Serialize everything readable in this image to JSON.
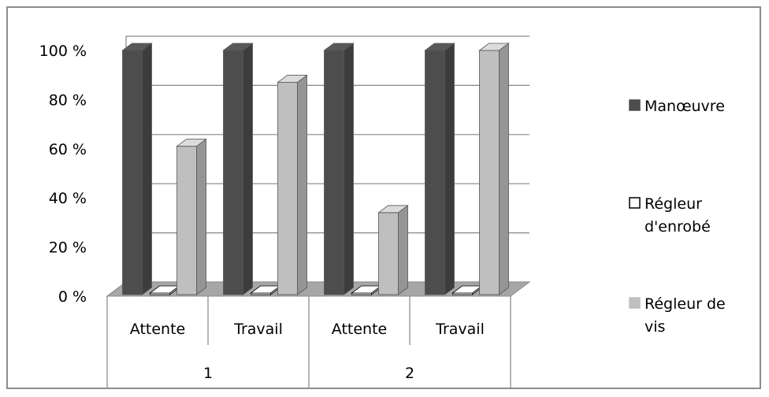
{
  "chart_data": {
    "type": "bar",
    "groups": [
      "1",
      "2"
    ],
    "categories": [
      "Attente",
      "Travail",
      "Attente",
      "Travail"
    ],
    "category_groups": [
      "1",
      "1",
      "2",
      "2"
    ],
    "series": [
      {
        "name": "Manœuvre",
        "values": [
          100,
          100,
          100,
          100
        ]
      },
      {
        "name": "Régleur d'enrobé",
        "values": [
          0,
          0,
          0,
          0
        ]
      },
      {
        "name": "Régleur de vis",
        "values": [
          61,
          87,
          34,
          100
        ]
      }
    ],
    "yticks": [
      "0 %",
      "20 %",
      "40 %",
      "60 %",
      "80 %",
      "100 %"
    ],
    "ylim": [
      0,
      100
    ],
    "grid": true,
    "legend_position": "right",
    "colors": {
      "Manœuvre": "#4d4d4d",
      "Régleur d'enrobé": "#ffffff",
      "Régleur de vis": "#bfbfbf"
    }
  },
  "legend": {
    "items": [
      {
        "lines": [
          "Manœuvre"
        ]
      },
      {
        "lines": [
          "Régleur",
          "d'enrobé"
        ]
      },
      {
        "lines": [
          "Régleur de",
          "vis"
        ]
      }
    ]
  }
}
